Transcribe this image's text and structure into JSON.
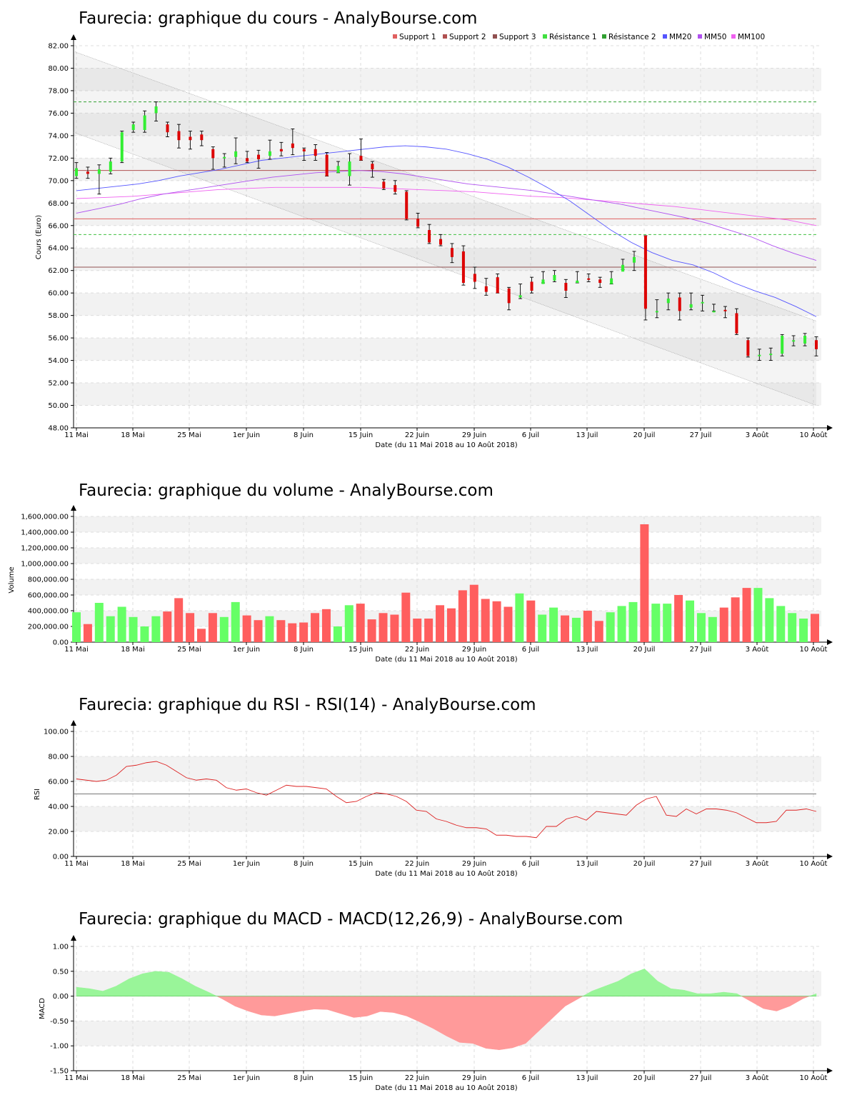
{
  "chart_data": [
    {
      "type": "candlestick",
      "title": "Faurecia: graphique du cours - AnalyBourse.com",
      "xlabel": "Date (du 11 Mai 2018 au 10 Août 2018)",
      "ylabel": "Cours (Euro)",
      "ylim": [
        48,
        82
      ],
      "yticks": [
        "48.00",
        "50.00",
        "52.00",
        "54.00",
        "56.00",
        "58.00",
        "60.00",
        "62.00",
        "64.00",
        "66.00",
        "68.00",
        "70.00",
        "72.00",
        "74.00",
        "76.00",
        "78.00",
        "80.00",
        "82.00"
      ],
      "xticks": [
        "11 Mai",
        "18 Mai",
        "25 Mai",
        "1er Juin",
        "8 Juin",
        "15 Juin",
        "22 Juin",
        "29 Juin",
        "6 Juil",
        "13 Juil",
        "20 Juil",
        "27 Juil",
        "3 Août",
        "10 Août"
      ],
      "legend_position": "top-right",
      "legend": [
        {
          "name": "Support 1",
          "color": "#e06060"
        },
        {
          "name": "Support 2",
          "color": "#b05050"
        },
        {
          "name": "Support 3",
          "color": "#905050"
        },
        {
          "name": "Résistance 1",
          "color": "#40e040"
        },
        {
          "name": "Résistance 2",
          "color": "#30a030"
        },
        {
          "name": "MM20",
          "color": "#5555ff"
        },
        {
          "name": "MM50",
          "color": "#b050f0"
        },
        {
          "name": "MM100",
          "color": "#f060f0"
        }
      ],
      "levels": {
        "support1": 66.6,
        "support2": 70.9,
        "support3": 62.3,
        "resistance1": 65.2,
        "resistance2": 77.0
      },
      "candles": [
        [
          70.4,
          71.1,
          70.2,
          71.6
        ],
        [
          70.8,
          70.6,
          70.2,
          71.2
        ],
        [
          70.6,
          71.0,
          68.8,
          71.4
        ],
        [
          70.8,
          71.7,
          70.6,
          72.0
        ],
        [
          71.7,
          74.3,
          71.6,
          74.4
        ],
        [
          74.5,
          75.0,
          74.3,
          75.2
        ],
        [
          74.5,
          75.8,
          74.3,
          76.2
        ],
        [
          76.0,
          76.6,
          75.3,
          77.0
        ],
        [
          75.0,
          74.3,
          73.9,
          75.2
        ],
        [
          74.4,
          73.6,
          72.9,
          75.0
        ],
        [
          73.9,
          73.6,
          72.8,
          74.4
        ],
        [
          74.1,
          73.6,
          73.1,
          74.4
        ],
        [
          72.8,
          72.0,
          71.0,
          73.0
        ],
        [
          72.0,
          72.1,
          71.2,
          72.4
        ],
        [
          72.1,
          72.6,
          71.5,
          73.8
        ],
        [
          72.0,
          71.7,
          71.6,
          72.6
        ],
        [
          72.3,
          71.9,
          71.1,
          72.7
        ],
        [
          72.2,
          72.6,
          71.9,
          73.6
        ],
        [
          72.8,
          72.6,
          72.2,
          73.4
        ],
        [
          73.3,
          72.9,
          72.3,
          74.6
        ],
        [
          72.8,
          72.6,
          71.8,
          72.9
        ],
        [
          72.8,
          72.2,
          71.8,
          73.2
        ],
        [
          72.3,
          70.4,
          70.4,
          72.5
        ],
        [
          70.7,
          71.3,
          70.7,
          71.7
        ],
        [
          70.4,
          71.7,
          69.6,
          72.4
        ],
        [
          72.2,
          71.8,
          71.8,
          73.7
        ],
        [
          71.5,
          71.0,
          70.3,
          71.7
        ],
        [
          69.9,
          69.3,
          69.2,
          70.1
        ],
        [
          69.6,
          69.0,
          68.8,
          70.0
        ],
        [
          69.0,
          66.6,
          66.5,
          69.1
        ],
        [
          66.6,
          65.9,
          65.8,
          67.1
        ],
        [
          65.6,
          64.5,
          64.4,
          66.1
        ],
        [
          64.8,
          64.3,
          64.2,
          65.2
        ],
        [
          64.0,
          63.2,
          62.7,
          64.4
        ],
        [
          63.7,
          60.9,
          60.7,
          64.2
        ],
        [
          61.7,
          61.0,
          60.4,
          62.3
        ],
        [
          60.6,
          60.1,
          59.8,
          61.3
        ],
        [
          61.4,
          60.0,
          60.0,
          61.7
        ],
        [
          60.4,
          59.1,
          58.5,
          60.5
        ],
        [
          59.6,
          59.8,
          59.5,
          60.8
        ],
        [
          61.0,
          60.2,
          60.0,
          61.4
        ],
        [
          60.8,
          61.2,
          60.9,
          61.9
        ],
        [
          61.1,
          61.6,
          61.0,
          62.0
        ],
        [
          60.9,
          60.2,
          59.6,
          61.2
        ],
        [
          60.9,
          61.1,
          60.9,
          61.9
        ],
        [
          61.3,
          61.2,
          61.0,
          61.7
        ],
        [
          61.2,
          60.9,
          60.5,
          61.4
        ],
        [
          60.8,
          61.3,
          60.8,
          61.9
        ],
        [
          61.9,
          62.5,
          62.1,
          63.0
        ],
        [
          62.7,
          63.2,
          62.0,
          63.7
        ],
        [
          65.1,
          58.6,
          57.6,
          65.1
        ],
        [
          58.4,
          58.4,
          57.8,
          59.4
        ],
        [
          59.1,
          59.5,
          58.5,
          60.0
        ],
        [
          59.6,
          58.4,
          57.6,
          60.0
        ],
        [
          58.7,
          59.0,
          58.5,
          60.0
        ],
        [
          59.2,
          59.2,
          58.4,
          59.8
        ],
        [
          58.4,
          58.4,
          58.4,
          59.0
        ],
        [
          58.5,
          58.4,
          57.8,
          58.8
        ],
        [
          58.2,
          56.4,
          56.3,
          58.6
        ],
        [
          55.8,
          54.4,
          54.3,
          56.0
        ],
        [
          54.5,
          54.5,
          54.0,
          55.0
        ],
        [
          54.6,
          54.6,
          54.0,
          55.1
        ],
        [
          54.6,
          56.2,
          54.4,
          56.3
        ],
        [
          55.7,
          55.8,
          55.3,
          56.2
        ],
        [
          55.5,
          56.2,
          55.3,
          56.4
        ],
        [
          55.8,
          55.0,
          54.4,
          56.1
        ]
      ],
      "mm20": [
        69.1,
        69.3,
        69.5,
        69.7,
        70.0,
        70.4,
        70.7,
        71.0,
        71.4,
        71.8,
        72.0,
        72.2,
        72.4,
        72.6,
        72.8,
        73.0,
        73.1,
        73.0,
        72.8,
        72.4,
        71.9,
        71.2,
        70.3,
        69.3,
        68.2,
        66.9,
        65.6,
        64.5,
        63.6,
        62.9,
        62.5,
        61.8,
        60.9,
        60.2,
        59.6,
        58.8,
        57.9
      ],
      "mm50": [
        67.1,
        67.5,
        67.9,
        68.4,
        68.8,
        69.1,
        69.4,
        69.7,
        70.0,
        70.3,
        70.5,
        70.7,
        70.8,
        70.9,
        70.8,
        70.6,
        70.3,
        70.0,
        69.7,
        69.5,
        69.3,
        69.1,
        68.8,
        68.5,
        68.2,
        67.9,
        67.5,
        67.1,
        66.7,
        66.2,
        65.6,
        65.0,
        64.2,
        63.5,
        62.9
      ],
      "mm100": [
        68.4,
        68.5,
        68.6,
        68.8,
        69.0,
        69.2,
        69.3,
        69.4,
        69.4,
        69.4,
        69.4,
        69.3,
        69.2,
        69.1,
        69.0,
        68.8,
        68.6,
        68.5,
        68.3,
        68.1,
        67.9,
        67.7,
        67.4,
        67.1,
        66.8,
        66.5,
        66.0
      ]
    },
    {
      "type": "bar",
      "title": "Faurecia: graphique du volume - AnalyBourse.com",
      "xlabel": "Date (du 11 Mai 2018 au 10 Août 2018)",
      "ylabel": "Volume",
      "ylim": [
        0,
        1600000
      ],
      "yticks": [
        "0.00",
        "200,000.00",
        "400,000.00",
        "600,000.00",
        "800,000.00",
        "1,000,000.00",
        "1,200,000.00",
        "1,400,000.00",
        "1,600,000.00"
      ],
      "xticks": [
        "11 Mai",
        "18 Mai",
        "25 Mai",
        "1er Juin",
        "8 Juin",
        "15 Juin",
        "22 Juin",
        "29 Juin",
        "6 Juil",
        "13 Juil",
        "20 Juil",
        "27 Juil",
        "3 Août",
        "10 Août"
      ],
      "values": [
        380000,
        230000,
        500000,
        330000,
        450000,
        320000,
        200000,
        330000,
        390000,
        560000,
        370000,
        170000,
        370000,
        320000,
        510000,
        340000,
        280000,
        330000,
        280000,
        240000,
        250000,
        370000,
        420000,
        200000,
        470000,
        490000,
        290000,
        370000,
        350000,
        630000,
        300000,
        300000,
        470000,
        430000,
        660000,
        730000,
        550000,
        520000,
        450000,
        620000,
        530000,
        350000,
        440000,
        340000,
        310000,
        400000,
        270000,
        380000,
        460000,
        510000,
        1500000,
        490000,
        490000,
        600000,
        530000,
        370000,
        320000,
        440000,
        570000,
        690000,
        690000,
        560000,
        460000,
        370000,
        300000,
        360000
      ]
    },
    {
      "type": "line",
      "title": "Faurecia: graphique du RSI - RSI(14) - AnalyBourse.com",
      "xlabel": "Date (du 11 Mai 2018 au 10 Août 2018)",
      "ylabel": "RSI",
      "ylim": [
        0,
        100
      ],
      "yticks": [
        "0.00",
        "20.00",
        "40.00",
        "60.00",
        "80.00",
        "100.00"
      ],
      "xticks": [
        "11 Mai",
        "18 Mai",
        "25 Mai",
        "1er Juin",
        "8 Juin",
        "15 Juin",
        "22 Juin",
        "29 Juin",
        "6 Juil",
        "13 Juil",
        "20 Juil",
        "27 Juil",
        "3 Août",
        "10 Août"
      ],
      "reference_line": 50,
      "values": [
        62,
        61,
        60,
        61,
        65,
        72,
        73,
        75,
        76,
        73,
        68,
        63,
        61,
        62,
        61,
        55,
        53,
        54,
        51,
        49,
        53,
        57,
        56,
        56,
        55,
        54,
        48,
        43,
        44,
        48,
        51,
        50,
        48,
        44,
        37,
        36,
        30,
        28,
        25,
        23,
        23,
        22,
        17,
        17,
        16,
        16,
        15,
        24,
        24,
        30,
        32,
        29,
        36,
        35,
        34,
        33,
        41,
        46,
        48,
        33,
        32,
        38,
        34,
        38,
        38,
        37,
        35,
        31,
        27,
        27,
        28,
        37,
        37,
        38,
        36
      ]
    },
    {
      "type": "area",
      "title": "Faurecia: graphique du MACD - MACD(12,26,9) - AnalyBourse.com",
      "xlabel": "Date (du 11 Mai 2018 au 10 Août 2018)",
      "ylabel": "MACD",
      "ylim": [
        -1.5,
        1.0
      ],
      "yticks": [
        "-1.50",
        "-1.00",
        "-0.50",
        "0.00",
        "0.50",
        "1.00"
      ],
      "xticks": [
        "11 Mai",
        "18 Mai",
        "25 Mai",
        "1er Juin",
        "8 Juin",
        "15 Juin",
        "22 Juin",
        "29 Juin",
        "6 Juil",
        "13 Juil",
        "20 Juil",
        "27 Juil",
        "3 Août",
        "10 Août"
      ],
      "values": [
        0.18,
        0.15,
        0.1,
        0.2,
        0.35,
        0.45,
        0.5,
        0.48,
        0.35,
        0.2,
        0.08,
        -0.05,
        -0.2,
        -0.3,
        -0.38,
        -0.4,
        -0.35,
        -0.3,
        -0.26,
        -0.27,
        -0.35,
        -0.43,
        -0.4,
        -0.31,
        -0.33,
        -0.4,
        -0.52,
        -0.65,
        -0.8,
        -0.93,
        -0.95,
        -1.05,
        -1.08,
        -1.04,
        -0.95,
        -0.7,
        -0.45,
        -0.2,
        -0.05,
        0.1,
        0.2,
        0.3,
        0.45,
        0.55,
        0.3,
        0.15,
        0.12,
        0.05,
        0.05,
        0.08,
        0.05,
        -0.1,
        -0.25,
        -0.3,
        -0.2,
        -0.05,
        0.05
      ]
    }
  ]
}
